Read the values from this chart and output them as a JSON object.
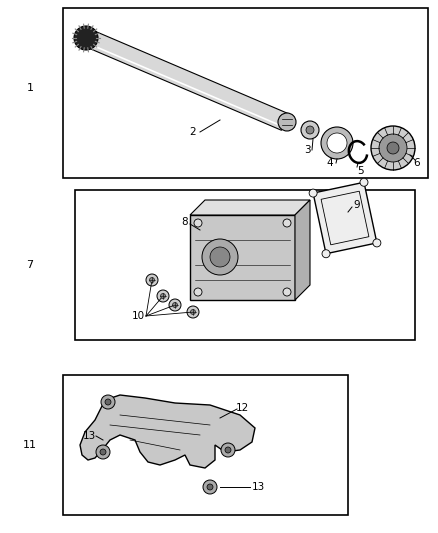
{
  "bg_color": "#ffffff",
  "line_color": "#000000",
  "gray_light": "#cccccc",
  "gray_mid": "#aaaaaa",
  "gray_dark": "#555555",
  "gray_darkest": "#222222",
  "label_fontsize": 7.5,
  "fig_width": 4.38,
  "fig_height": 5.33,
  "dpi": 100
}
